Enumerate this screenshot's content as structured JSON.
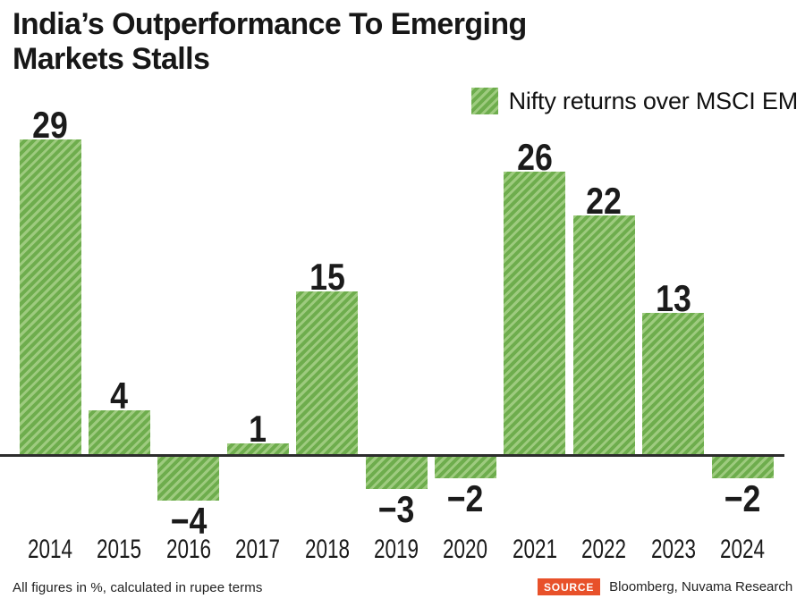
{
  "title": {
    "line1": "India’s Outperformance To Emerging",
    "line2": "Markets Stalls"
  },
  "legend": {
    "label": "Nifty returns over MSCI EM",
    "swatch_icon": "green-hatched-square"
  },
  "chart_data": {
    "type": "bar",
    "categories": [
      "2014",
      "2015",
      "2016",
      "2017",
      "2018",
      "2019",
      "2020",
      "2021",
      "2022",
      "2023",
      "2024"
    ],
    "values": [
      29,
      4,
      -4,
      1,
      15,
      -3,
      -2,
      26,
      22,
      13,
      -2
    ],
    "series_name": "Nifty returns over MSCI EM",
    "title": "India’s Outperformance To Emerging Markets Stalls",
    "xlabel": "",
    "ylabel": "",
    "ylim": [
      -6,
      31
    ],
    "grid": false,
    "legend_position": "top-right",
    "value_labels_shown": true,
    "bar_color": "#6ead4d",
    "bar_stripe_color": "#9ecb7f",
    "axis_color": "#2d2d2d"
  },
  "footer": {
    "note": "All figures in %, calculated in rupee terms",
    "source_label": "SOURCE",
    "source_text": "Bloomberg, Nuvama Research",
    "source_badge_color": "#e8512a"
  }
}
